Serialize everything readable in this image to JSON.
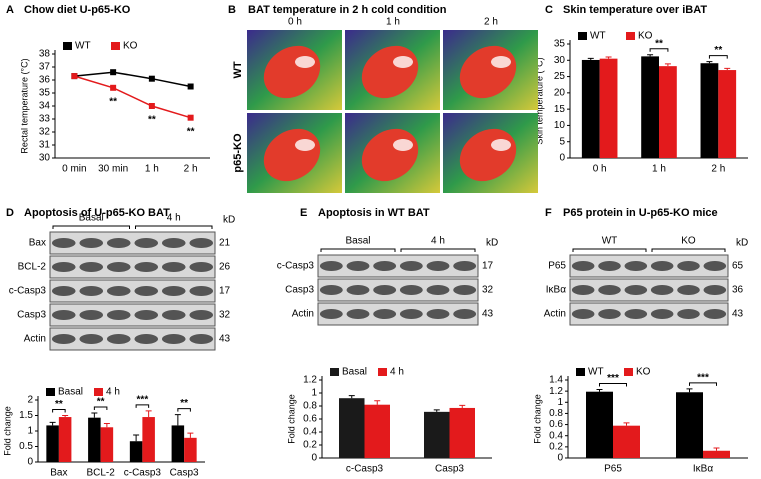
{
  "chart_data": [
    {
      "type": "line",
      "panel": "A",
      "title": "Chow diet U-p65-KO",
      "ylabel": "Rectal temperature (°C)",
      "categories": [
        "0 min",
        "30 min",
        "1 h",
        "2 h"
      ],
      "series": [
        {
          "name": "WT",
          "color": "#000000",
          "values": [
            36.3,
            36.6,
            36.1,
            35.5
          ]
        },
        {
          "name": "KO",
          "color": "#e31a1c",
          "values": [
            36.3,
            35.4,
            34.0,
            33.1
          ]
        }
      ],
      "annotations": [
        null,
        "**",
        "**",
        "**"
      ],
      "ylim": [
        30,
        38
      ],
      "yticks": [
        30,
        31,
        32,
        33,
        34,
        35,
        36,
        37,
        38
      ],
      "legend": "top-left"
    },
    {
      "type": "bar",
      "panel": "C",
      "title": "Skin temperature over iBAT",
      "ylabel": "Skin temperature (°C)",
      "categories": [
        "0 h",
        "1 h",
        "2 h"
      ],
      "series": [
        {
          "name": "WT",
          "color": "#000000",
          "values": [
            30.1,
            31.2,
            29.1
          ],
          "errors": [
            0.5,
            0.5,
            0.5
          ]
        },
        {
          "name": "KO",
          "color": "#e31a1c",
          "values": [
            30.5,
            28.2,
            27.0
          ],
          "errors": [
            0.5,
            0.7,
            0.5
          ]
        }
      ],
      "annotations": [
        null,
        "**",
        "**"
      ],
      "ylim": [
        0,
        35
      ],
      "yticks": [
        0,
        5,
        10,
        15,
        20,
        25,
        30,
        35
      ],
      "legend": "top-left"
    },
    {
      "type": "bar",
      "panel": "D",
      "title": "Apoptosis of U-p65-KO BAT",
      "ylabel": "Fold change",
      "categories": [
        "Bax",
        "BCL-2",
        "c-Casp3",
        "Casp3"
      ],
      "series": [
        {
          "name": "Basal",
          "color": "#000000",
          "values": [
            1.18,
            1.43,
            0.67,
            1.18
          ],
          "errors": [
            0.1,
            0.15,
            0.2,
            0.35
          ]
        },
        {
          "name": "4 h",
          "color": "#e31a1c",
          "values": [
            1.45,
            1.12,
            1.45,
            0.78
          ],
          "errors": [
            0.05,
            0.12,
            0.2,
            0.15
          ]
        }
      ],
      "annotations": [
        "**",
        "**",
        "***",
        "**"
      ],
      "ylim": [
        0,
        2
      ],
      "yticks": [
        0,
        0.5,
        1,
        1.5,
        2
      ],
      "legend": "top-left"
    },
    {
      "type": "bar",
      "panel": "E",
      "title": "Apoptosis in WT BAT",
      "ylabel": "Fold change",
      "categories": [
        "c-Casp3",
        "Casp3"
      ],
      "series": [
        {
          "name": "Basal",
          "color": "#1a1a1a",
          "values": [
            0.92,
            0.71
          ],
          "errors": [
            0.04,
            0.03
          ]
        },
        {
          "name": "4 h",
          "color": "#e31a1c",
          "values": [
            0.82,
            0.77
          ],
          "errors": [
            0.06,
            0.04
          ]
        }
      ],
      "ylim": [
        0,
        1.2
      ],
      "yticks": [
        0,
        0.2,
        0.4,
        0.6,
        0.8,
        1,
        1.2
      ],
      "legend": "top-left"
    },
    {
      "type": "bar",
      "panel": "F",
      "title": "P65 protein in U-p65-KO mice",
      "ylabel": "Fold change",
      "categories": [
        "P65",
        "IκBα"
      ],
      "series": [
        {
          "name": "WT",
          "color": "#000000",
          "values": [
            1.19,
            1.18
          ],
          "errors": [
            0.04,
            0.06
          ]
        },
        {
          "name": "KO",
          "color": "#e31a1c",
          "values": [
            0.58,
            0.13
          ],
          "errors": [
            0.05,
            0.05
          ]
        }
      ],
      "annotations": [
        "***",
        "***"
      ],
      "ylim": [
        0,
        1.4
      ],
      "yticks": [
        0,
        0.2,
        0.4,
        0.6,
        0.8,
        1,
        1.2,
        1.4
      ],
      "legend": "top-left"
    }
  ],
  "thermal": {
    "panel": "B",
    "title": "BAT temperature in 2 h cold condition",
    "columns": [
      "0 h",
      "1 h",
      "2 h"
    ],
    "rows": [
      "WT",
      "p65-KO"
    ]
  },
  "blots": [
    {
      "groups": [
        "Basal",
        "4 h"
      ],
      "unit": "kD",
      "bands": [
        {
          "label": "Bax",
          "kd": 21
        },
        {
          "label": "BCL-2",
          "kd": 26
        },
        {
          "label": "c-Casp3",
          "kd": 17
        },
        {
          "label": "Casp3",
          "kd": 32
        },
        {
          "label": "Actin",
          "kd": 43
        }
      ]
    },
    {
      "groups": [
        "Basal",
        "4 h"
      ],
      "unit": "kD",
      "bands": [
        {
          "label": "c-Casp3",
          "kd": 17
        },
        {
          "label": "Casp3",
          "kd": 32
        },
        {
          "label": "Actin",
          "kd": 43
        }
      ]
    },
    {
      "groups": [
        "WT",
        "KO"
      ],
      "unit": "kD",
      "bands": [
        {
          "label": "P65",
          "kd": 65
        },
        {
          "label": "IκBα",
          "kd": 36
        },
        {
          "label": "Actin",
          "kd": 43
        }
      ]
    }
  ]
}
